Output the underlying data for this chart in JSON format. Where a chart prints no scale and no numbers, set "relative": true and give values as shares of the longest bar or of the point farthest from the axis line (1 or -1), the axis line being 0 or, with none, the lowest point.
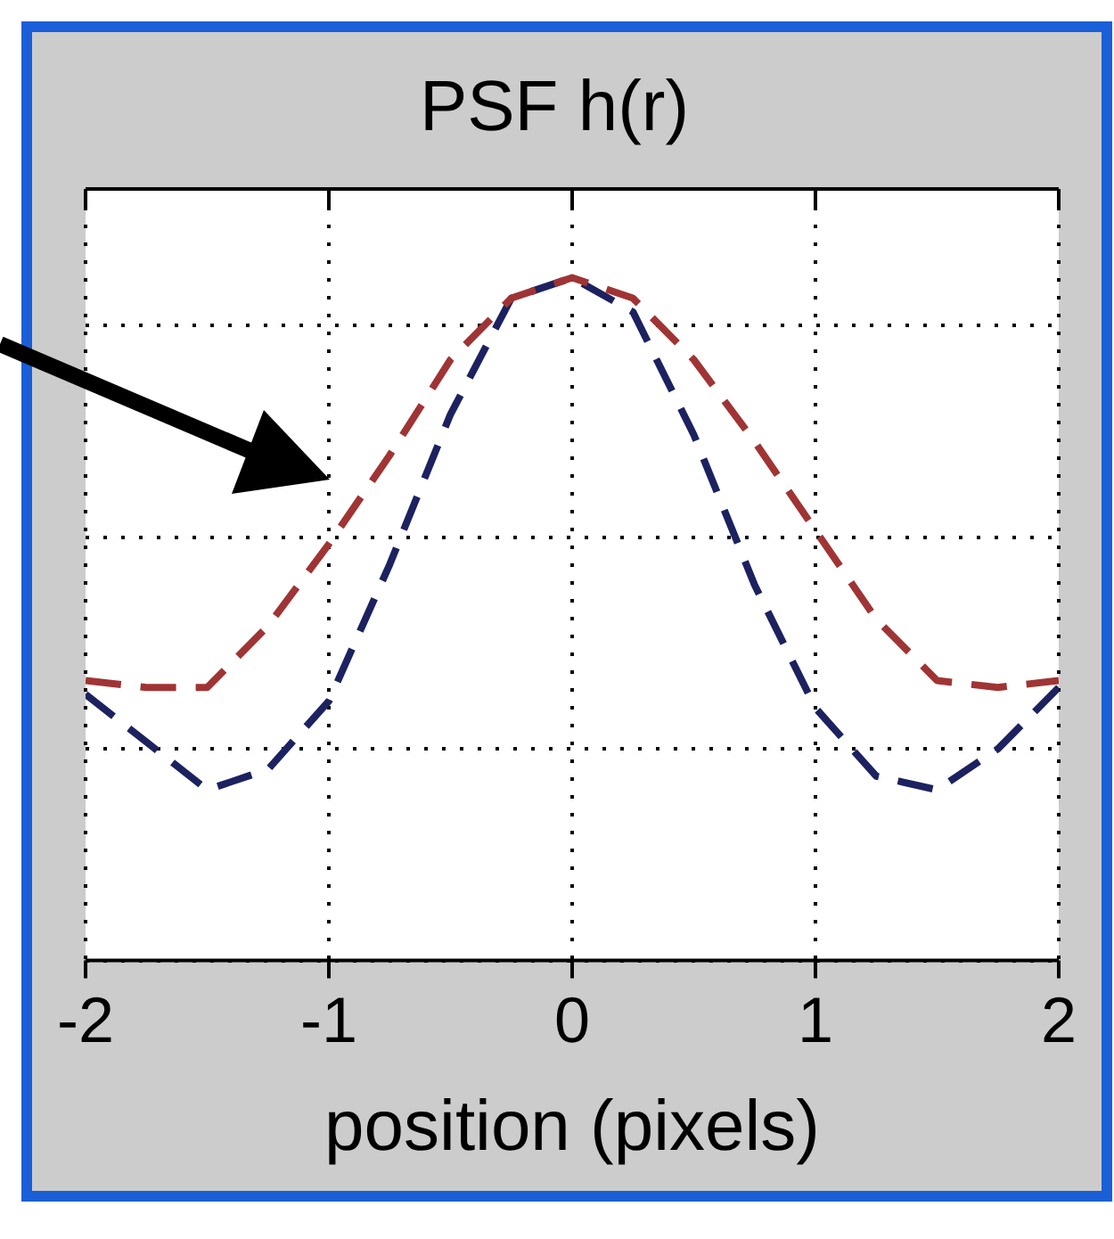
{
  "chart_data": {
    "type": "line",
    "title": "PSF h(r)",
    "xlabel": "position (pixels)",
    "relative": true,
    "x": [
      -2,
      -1.75,
      -1.5,
      -1.25,
      -1,
      -0.75,
      -0.5,
      -0.25,
      0,
      0.25,
      0.5,
      0.75,
      1,
      1.25,
      1.5,
      1.75,
      2
    ],
    "xlim": [
      -2,
      2
    ],
    "xticks": [
      -2,
      -1,
      0,
      1,
      2
    ],
    "series": [
      {
        "color": "#a03434",
        "values": [
          0.41,
          0.4,
          0.4,
          0.49,
          0.61,
          0.74,
          0.88,
          0.97,
          1.0,
          0.97,
          0.88,
          0.76,
          0.63,
          0.5,
          0.41,
          0.4,
          0.41
        ]
      },
      {
        "color": "#1c2260",
        "values": [
          0.39,
          0.32,
          0.25,
          0.28,
          0.38,
          0.58,
          0.8,
          0.97,
          1.0,
          0.95,
          0.77,
          0.55,
          0.37,
          0.27,
          0.25,
          0.31,
          0.4
        ]
      }
    ],
    "grid": true,
    "line_style": "dashed",
    "marker": "none",
    "legend": false
  }
}
